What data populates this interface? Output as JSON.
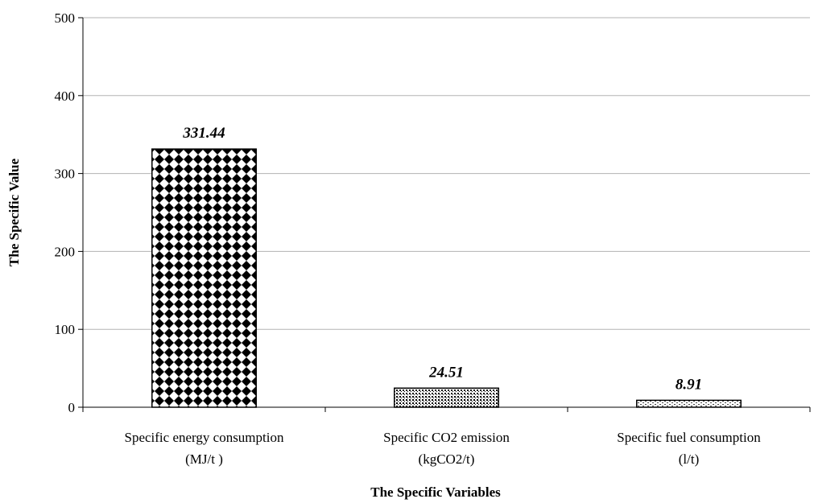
{
  "chart_data": {
    "type": "bar",
    "categories": [
      [
        "Specific energy consumption",
        "(MJ/t )"
      ],
      [
        "Specific CO2 emission",
        "(kgCO2/t)"
      ],
      [
        "Specific fuel consumption",
        "(l/t)"
      ]
    ],
    "values": [
      331.44,
      24.51,
      8.91
    ],
    "data_labels": [
      "331.44",
      "24.51",
      "8.91"
    ],
    "xlabel": "The Specific Variables",
    "ylabel": "The Specific Value",
    "ylim": [
      0,
      500
    ],
    "yticks": [
      0,
      100,
      200,
      300,
      400,
      500
    ],
    "grid": true,
    "legend": "none",
    "bar_patterns": [
      "diamond-checker",
      "fine-dots",
      "light-dots"
    ],
    "colors": {
      "bar_fill": "#000000",
      "bar_bg": "#ffffff",
      "grid": "#b3b3b3",
      "axis": "#000000"
    }
  }
}
